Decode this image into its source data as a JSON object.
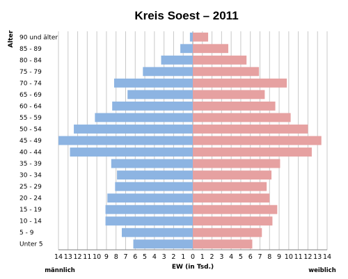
{
  "chart_data": {
    "type": "bar",
    "orientation": "horizontal",
    "title": "Kreis Soest – 2011",
    "ylabel": "Alter",
    "xlabel": "EW (in Tsd.)",
    "left_label": "männlich",
    "right_label": "weiblich",
    "xlim": [
      0,
      14
    ],
    "xticks": [
      "14",
      "13",
      "12",
      "11",
      "10",
      "9",
      "8",
      "7",
      "6",
      "5",
      "4",
      "3",
      "2",
      "1",
      "0",
      "1",
      "2",
      "3",
      "4",
      "5",
      "6",
      "7",
      "8",
      "9",
      "10",
      "11",
      "12",
      "13",
      "14"
    ],
    "grid": true,
    "categories": [
      "90 und älter",
      "85 - 89",
      "80 - 84",
      "75 - 79",
      "70 - 74",
      "65 - 69",
      "60 - 64",
      "55 - 59",
      "50 - 54",
      "45 - 49",
      "40 - 44",
      "35 - 39",
      "30 - 34",
      "25 - 29",
      "20 - 24",
      "15 - 19",
      "10 - 14",
      "5 - 9",
      "Unter 5"
    ],
    "series": [
      {
        "side": "left",
        "color": "#8db4e2",
        "values": [
          0.3,
          1.3,
          3.3,
          5.2,
          8.2,
          6.8,
          8.4,
          10.2,
          12.4,
          14.0,
          12.8,
          8.5,
          7.9,
          8.1,
          8.9,
          9.1,
          9.1,
          7.4,
          6.2
        ]
      },
      {
        "side": "right",
        "color": "#e6a1a1",
        "values": [
          1.6,
          3.7,
          5.6,
          6.9,
          9.8,
          7.5,
          8.6,
          10.2,
          12.0,
          13.4,
          12.4,
          9.1,
          8.2,
          7.7,
          8.0,
          8.8,
          8.3,
          7.2,
          6.2
        ]
      }
    ]
  }
}
